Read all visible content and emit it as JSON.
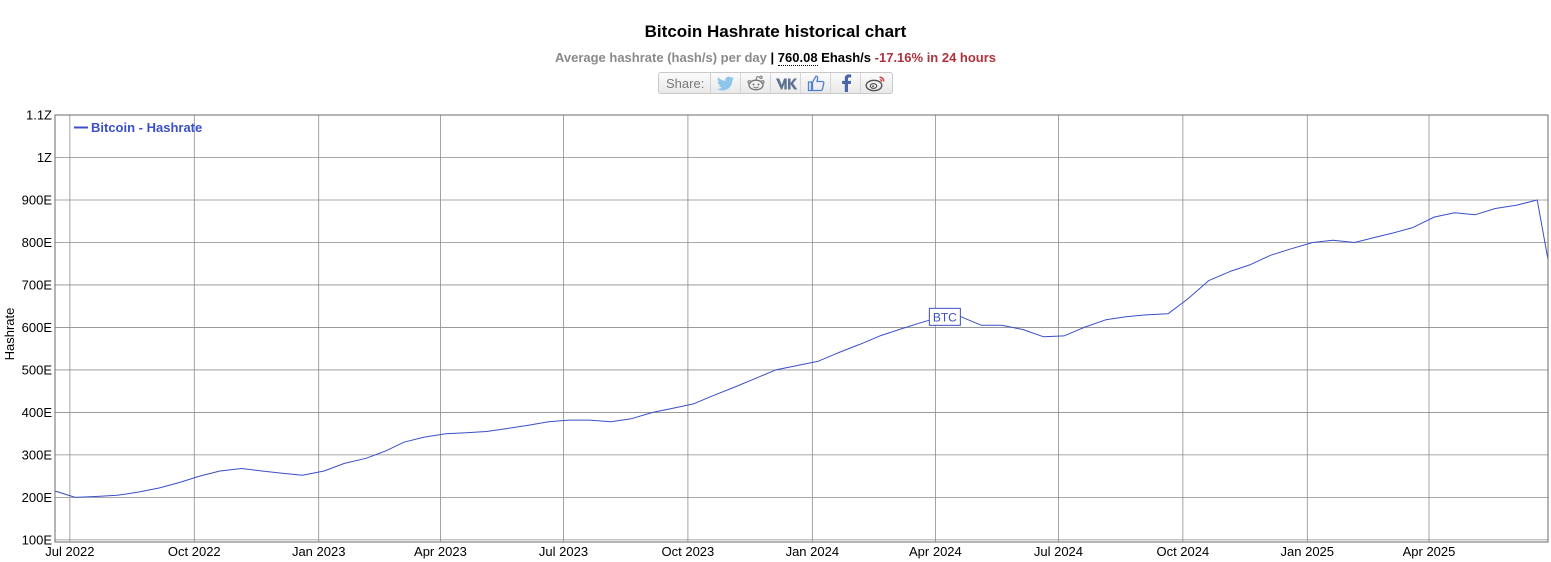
{
  "header": {
    "title": "Bitcoin Hashrate historical chart",
    "subtitle_prefix": "Average hashrate (hash/s) per day",
    "separator": "|",
    "current_value": "760.08",
    "current_unit": "Ehash/s",
    "change_24h": "-17.16% in 24 hours",
    "share_label": "Share:",
    "share_icons": [
      "twitter-icon",
      "reddit-icon",
      "vk-icon",
      "like-icon",
      "facebook-icon",
      "weibo-icon"
    ]
  },
  "colors": {
    "series": "#3a4fc8",
    "change": "#b0323c",
    "grid": "#8c8c8c"
  },
  "chart_data": {
    "type": "line",
    "title": "Bitcoin Hashrate historical chart",
    "ylabel": "Hashrate",
    "legend": [
      "Bitcoin - Hashrate"
    ],
    "legend_position": "top-left",
    "grid": true,
    "annotation": "BTC",
    "annotation_date": "2024-04-08",
    "xlim": [
      "2022-06-20",
      "2025-06-28"
    ],
    "ylim": [
      95,
      1100
    ],
    "y_unit": "Ehash/s",
    "y_ticks": [
      100,
      200,
      300,
      400,
      500,
      600,
      700,
      800,
      900,
      1000,
      1100
    ],
    "y_tick_labels": [
      "100E",
      "200E",
      "300E",
      "400E",
      "500E",
      "600E",
      "700E",
      "800E",
      "900E",
      "1Z",
      "1.1Z"
    ],
    "x_ticks": [
      "2022-07-01",
      "2022-10-01",
      "2023-01-01",
      "2023-04-01",
      "2023-07-01",
      "2023-10-01",
      "2024-01-01",
      "2024-04-01",
      "2024-07-01",
      "2024-10-01",
      "2025-01-01",
      "2025-04-01"
    ],
    "x_tick_labels": [
      "Jul 2022",
      "Oct 2022",
      "Jan 2023",
      "Apr 2023",
      "Jul 2023",
      "Oct 2023",
      "Jan 2024",
      "Apr 2024",
      "Jul 2024",
      "Oct 2024",
      "Jan 2025",
      "Apr 2025"
    ],
    "series": [
      {
        "name": "Bitcoin - Hashrate",
        "color": "#3a4fc8",
        "points": [
          [
            "2022-06-20",
            215
          ],
          [
            "2022-07-05",
            200
          ],
          [
            "2022-07-20",
            202
          ],
          [
            "2022-08-05",
            205
          ],
          [
            "2022-08-20",
            212
          ],
          [
            "2022-09-05",
            222
          ],
          [
            "2022-09-20",
            235
          ],
          [
            "2022-10-05",
            250
          ],
          [
            "2022-10-20",
            262
          ],
          [
            "2022-11-05",
            268
          ],
          [
            "2022-11-20",
            262
          ],
          [
            "2022-12-05",
            257
          ],
          [
            "2022-12-20",
            252
          ],
          [
            "2023-01-05",
            262
          ],
          [
            "2023-01-20",
            280
          ],
          [
            "2023-02-05",
            292
          ],
          [
            "2023-02-20",
            310
          ],
          [
            "2023-03-05",
            330
          ],
          [
            "2023-03-20",
            342
          ],
          [
            "2023-04-05",
            350
          ],
          [
            "2023-04-20",
            352
          ],
          [
            "2023-05-05",
            355
          ],
          [
            "2023-05-20",
            362
          ],
          [
            "2023-06-05",
            370
          ],
          [
            "2023-06-20",
            378
          ],
          [
            "2023-07-05",
            382
          ],
          [
            "2023-07-20",
            382
          ],
          [
            "2023-08-05",
            378
          ],
          [
            "2023-08-20",
            385
          ],
          [
            "2023-09-05",
            400
          ],
          [
            "2023-09-20",
            410
          ],
          [
            "2023-10-05",
            420
          ],
          [
            "2023-10-20",
            440
          ],
          [
            "2023-11-05",
            460
          ],
          [
            "2023-11-20",
            480
          ],
          [
            "2023-12-05",
            500
          ],
          [
            "2023-12-20",
            510
          ],
          [
            "2024-01-05",
            520
          ],
          [
            "2024-01-20",
            540
          ],
          [
            "2024-02-05",
            560
          ],
          [
            "2024-02-20",
            580
          ],
          [
            "2024-03-05",
            595
          ],
          [
            "2024-03-20",
            610
          ],
          [
            "2024-04-05",
            625
          ],
          [
            "2024-04-20",
            625
          ],
          [
            "2024-05-05",
            605
          ],
          [
            "2024-05-20",
            605
          ],
          [
            "2024-06-05",
            595
          ],
          [
            "2024-06-20",
            578
          ],
          [
            "2024-07-05",
            580
          ],
          [
            "2024-07-20",
            600
          ],
          [
            "2024-08-05",
            618
          ],
          [
            "2024-08-20",
            625
          ],
          [
            "2024-09-05",
            630
          ],
          [
            "2024-09-20",
            632
          ],
          [
            "2024-10-05",
            668
          ],
          [
            "2024-10-20",
            710
          ],
          [
            "2024-11-05",
            732
          ],
          [
            "2024-11-20",
            748
          ],
          [
            "2024-12-05",
            770
          ],
          [
            "2024-12-20",
            785
          ],
          [
            "2025-01-05",
            800
          ],
          [
            "2025-01-20",
            805
          ],
          [
            "2025-02-05",
            800
          ],
          [
            "2025-02-20",
            812
          ],
          [
            "2025-03-05",
            822
          ],
          [
            "2025-03-20",
            835
          ],
          [
            "2025-04-05",
            860
          ],
          [
            "2025-04-20",
            870
          ],
          [
            "2025-05-05",
            865
          ],
          [
            "2025-05-20",
            880
          ],
          [
            "2025-06-05",
            888
          ],
          [
            "2025-06-20",
            900
          ],
          [
            "2025-06-28",
            760
          ]
        ]
      }
    ]
  }
}
